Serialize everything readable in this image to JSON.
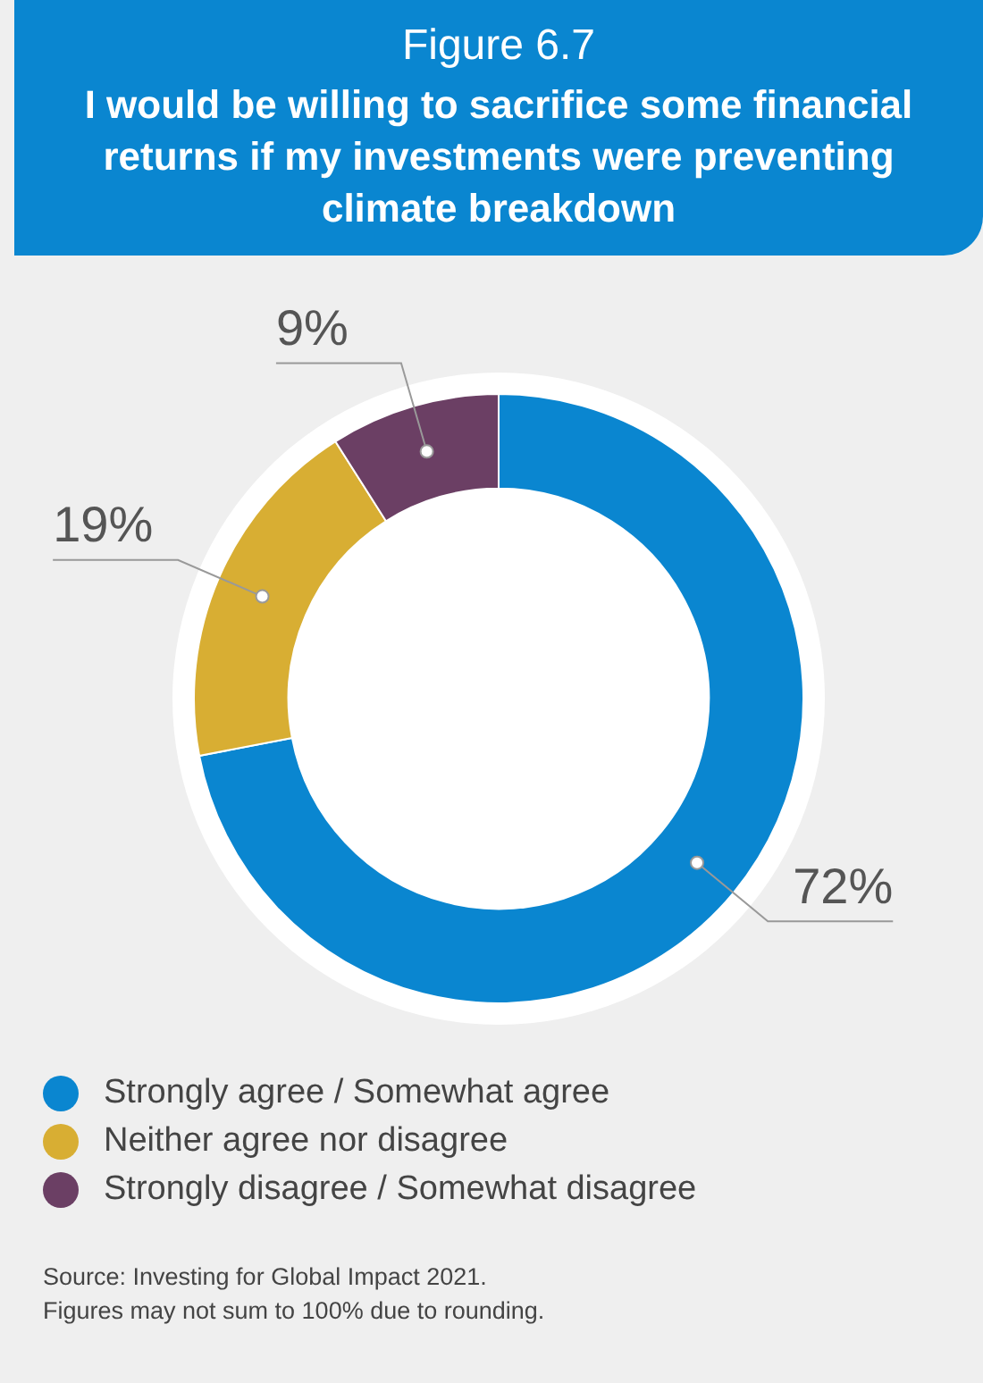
{
  "chart_data": {
    "type": "donut",
    "title": "Figure 6.7",
    "subtitle": "I would be willing to sacrifice some financial returns if my investments were preventing climate breakdown",
    "categories": [
      "Strongly agree / Somewhat agree",
      "Neither agree nor disagree",
      "Strongly disagree / Somewhat disagree"
    ],
    "values": [
      72,
      19,
      9
    ],
    "colors": [
      "#0a86d0",
      "#d8ae33",
      "#6b3f64"
    ],
    "value_labels": [
      "72%",
      "19%",
      "9%"
    ],
    "legend": "bottom left",
    "annotations": [
      "Source: Investing for Global Impact 2021.",
      "Figures may not sum to 100% due to rounding."
    ]
  }
}
